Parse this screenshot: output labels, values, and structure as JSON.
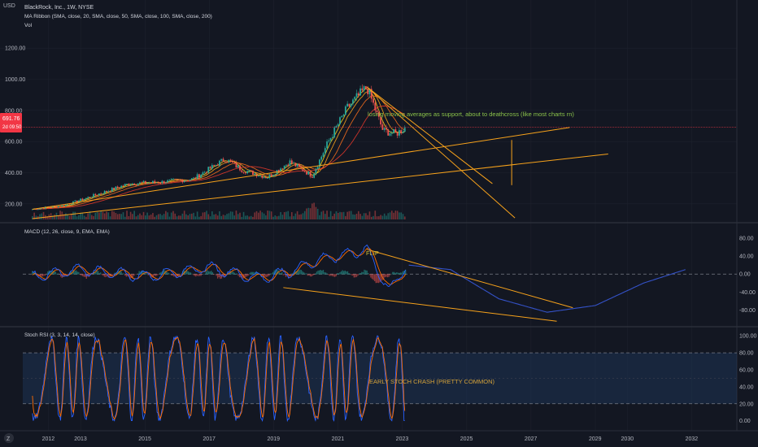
{
  "header": {
    "currency": "USD",
    "symbol_line": "BlackRock, Inc., 1W, NYSE",
    "indicator_1": "MA Ribbon (SMA, close, 20, SMA, close, 50, SMA, close, 100, SMA, close, 200)",
    "indicator_2": "Vol"
  },
  "price_badge": {
    "price": "691.76",
    "countdown": "2d 09:50",
    "color": "#f23645"
  },
  "annotations": {
    "price": "losing moving averages as support, about to deathcross (like most charts rn)",
    "macd": "FLIP",
    "stoch": "EARLY STOCH CRASH (PRETTY COMMON)"
  },
  "colors": {
    "background": "#131722",
    "grid": "#1e222d",
    "trendline": "#f7a21b",
    "candle_up": "#26a69a",
    "candle_down": "#ef5350",
    "macd_line": "#2962ff",
    "signal_line": "#ff6d00",
    "projection": "#3452c8",
    "ma20": "#f7d21b",
    "ma50": "#f7a21b",
    "ma100": "#f36b1d",
    "ma200": "#e0372b"
  },
  "footer_icon": "tradingview-logo-icon",
  "chart_data": [
    {
      "type": "line",
      "name": "price",
      "x_ticks": [
        "2012",
        "2013",
        "2015",
        "2017",
        "2019",
        "2021",
        "2023",
        "2025",
        "2027",
        "2029",
        "2030",
        "2032"
      ],
      "y_ticks": [
        "1200.00",
        "1000.00",
        "800.00",
        "600.00",
        "400.00",
        "200.00"
      ],
      "ylim": [
        100,
        1300
      ],
      "x": [
        2011.5,
        2012.5,
        2013.5,
        2014.5,
        2015.5,
        2016.5,
        2017.5,
        2018.0,
        2018.8,
        2019.5,
        2020.2,
        2020.7,
        2021.3,
        2021.9,
        2022.4,
        2022.8,
        2023.1
      ],
      "values": [
        165,
        190,
        260,
        330,
        340,
        360,
        490,
        420,
        370,
        470,
        380,
        600,
        820,
        950,
        670,
        650,
        690
      ],
      "current_price": 691.76,
      "trendlines": [
        {
          "from": [
            2021.9,
            950
          ],
          "to": [
            2025.8,
            330
          ]
        },
        {
          "from": [
            2021.9,
            950
          ],
          "to": [
            2026.5,
            110
          ]
        },
        {
          "from": [
            2011.5,
            165
          ],
          "to": [
            2028.2,
            690
          ]
        },
        {
          "from": [
            2011.5,
            105
          ],
          "to": [
            2029.4,
            520
          ]
        },
        {
          "from": [
            2026.4,
            610
          ],
          "to": [
            2026.4,
            320
          ]
        }
      ]
    },
    {
      "type": "line",
      "name": "MACD (12, 26, close, 9, EMA, EMA)",
      "y_ticks": [
        "80.00",
        "40.00",
        "0.00",
        "-40.00",
        "-80.00"
      ],
      "ylim": [
        -110,
        100
      ],
      "x": [
        2011.5,
        2013,
        2015,
        2017,
        2018.5,
        2019.5,
        2020.3,
        2021.3,
        2021.9,
        2022.6,
        2023.1
      ],
      "values": [
        -5,
        10,
        -5,
        15,
        -10,
        5,
        30,
        45,
        55,
        -40,
        20
      ],
      "projection": {
        "x": [
          2023.2,
          2024.5,
          2026,
          2027.5,
          2029,
          2030.5,
          2031.8
        ],
        "values": [
          20,
          10,
          -55,
          -85,
          -70,
          -20,
          10
        ]
      },
      "trendlines": [
        {
          "from": [
            2021.9,
            55
          ],
          "to": [
            2028.3,
            -75
          ]
        },
        {
          "from": [
            2019.3,
            -30
          ],
          "to": [
            2027.8,
            -105
          ]
        }
      ]
    },
    {
      "type": "line",
      "name": "Stoch RSI (3, 3, 14, 14, close)",
      "y_ticks": [
        "100.00",
        "80.00",
        "60.00",
        "40.00",
        "20.00",
        "0.00"
      ],
      "ylim": [
        -8,
        105
      ],
      "bands": [
        20,
        80
      ],
      "x": [
        2011.5,
        2012.5,
        2013.5,
        2014.5,
        2015.5,
        2016.5,
        2017.5,
        2018.5,
        2019.5,
        2020.5,
        2021.5,
        2022.5,
        2023.1
      ],
      "values": [
        95,
        10,
        90,
        5,
        92,
        8,
        96,
        3,
        90,
        6,
        95,
        10,
        0
      ]
    }
  ]
}
